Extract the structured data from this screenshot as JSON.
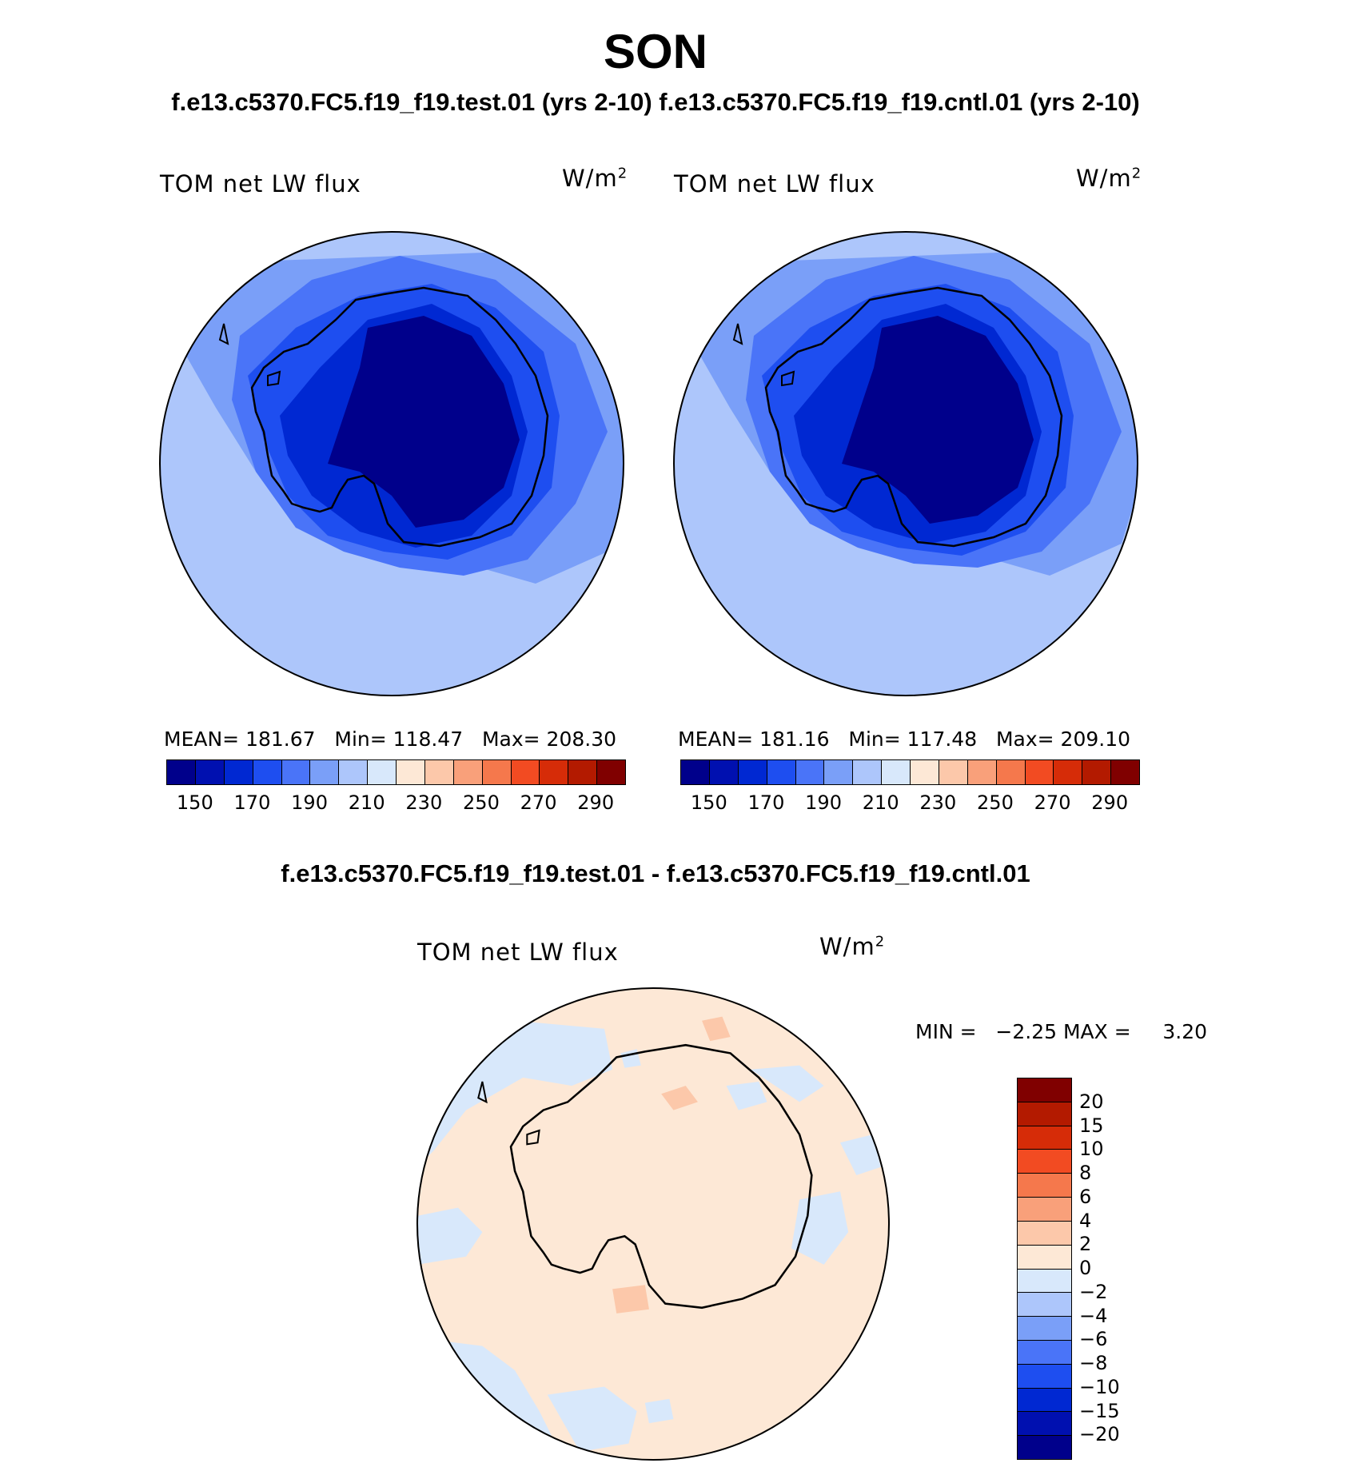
{
  "figure": {
    "title": "SON",
    "subtitle_top": "f.e13.c5370.FC5.f19_f19.test.01 (yrs 2-10) f.e13.c5370.FC5.f19_f19.cntl.01 (yrs 2-10)",
    "subtitle_diff": "f.e13.c5370.FC5.f19_f19.test.01 - f.e13.c5370.FC5.f19_f19.cntl.01"
  },
  "panels": [
    {
      "variable": "TOM net LW flux",
      "units": "W/m",
      "units_exp": "2",
      "mean_text": "MEAN= 181.67",
      "min_text": "Min= 118.47",
      "max_text": "Max= 208.30"
    },
    {
      "variable": "TOM net LW flux",
      "units": "W/m",
      "units_exp": "2",
      "mean_text": "MEAN= 181.16",
      "min_text": "Min= 117.48",
      "max_text": "Max= 209.10"
    }
  ],
  "diff_panel": {
    "variable": "TOM net LW flux",
    "units": "W/m",
    "units_exp": "2",
    "min_label": "MIN =",
    "min_value": "−2.25",
    "max_label": "MAX =",
    "max_value": "3.20"
  },
  "colorbar_main": {
    "colors": [
      "#00008b",
      "#0010b0",
      "#0028d2",
      "#1e4ef0",
      "#4a74f8",
      "#7a9ff8",
      "#adc6fb",
      "#d8e8fb",
      "#fde8d6",
      "#fcc8aa",
      "#f9a07a",
      "#f5784c",
      "#f24b22",
      "#d62c08",
      "#b31a00",
      "#800000"
    ],
    "labels": [
      "150",
      "170",
      "190",
      "210",
      "230",
      "250",
      "270",
      "290"
    ]
  },
  "colorbar_diff": {
    "colors": [
      "#800000",
      "#b31a00",
      "#d62c08",
      "#f24b22",
      "#f5784c",
      "#f9a07a",
      "#fcc8aa",
      "#fde8d6",
      "#d8e8fb",
      "#adc6fb",
      "#7a9ff8",
      "#4a74f8",
      "#1e4ef0",
      "#0028d2",
      "#0010b0",
      "#00008b"
    ],
    "labels": [
      "20",
      "15",
      "10",
      "8",
      "6",
      "4",
      "2",
      "0",
      "−2",
      "−4",
      "−6",
      "−8",
      "−10",
      "−15",
      "−20"
    ]
  }
}
